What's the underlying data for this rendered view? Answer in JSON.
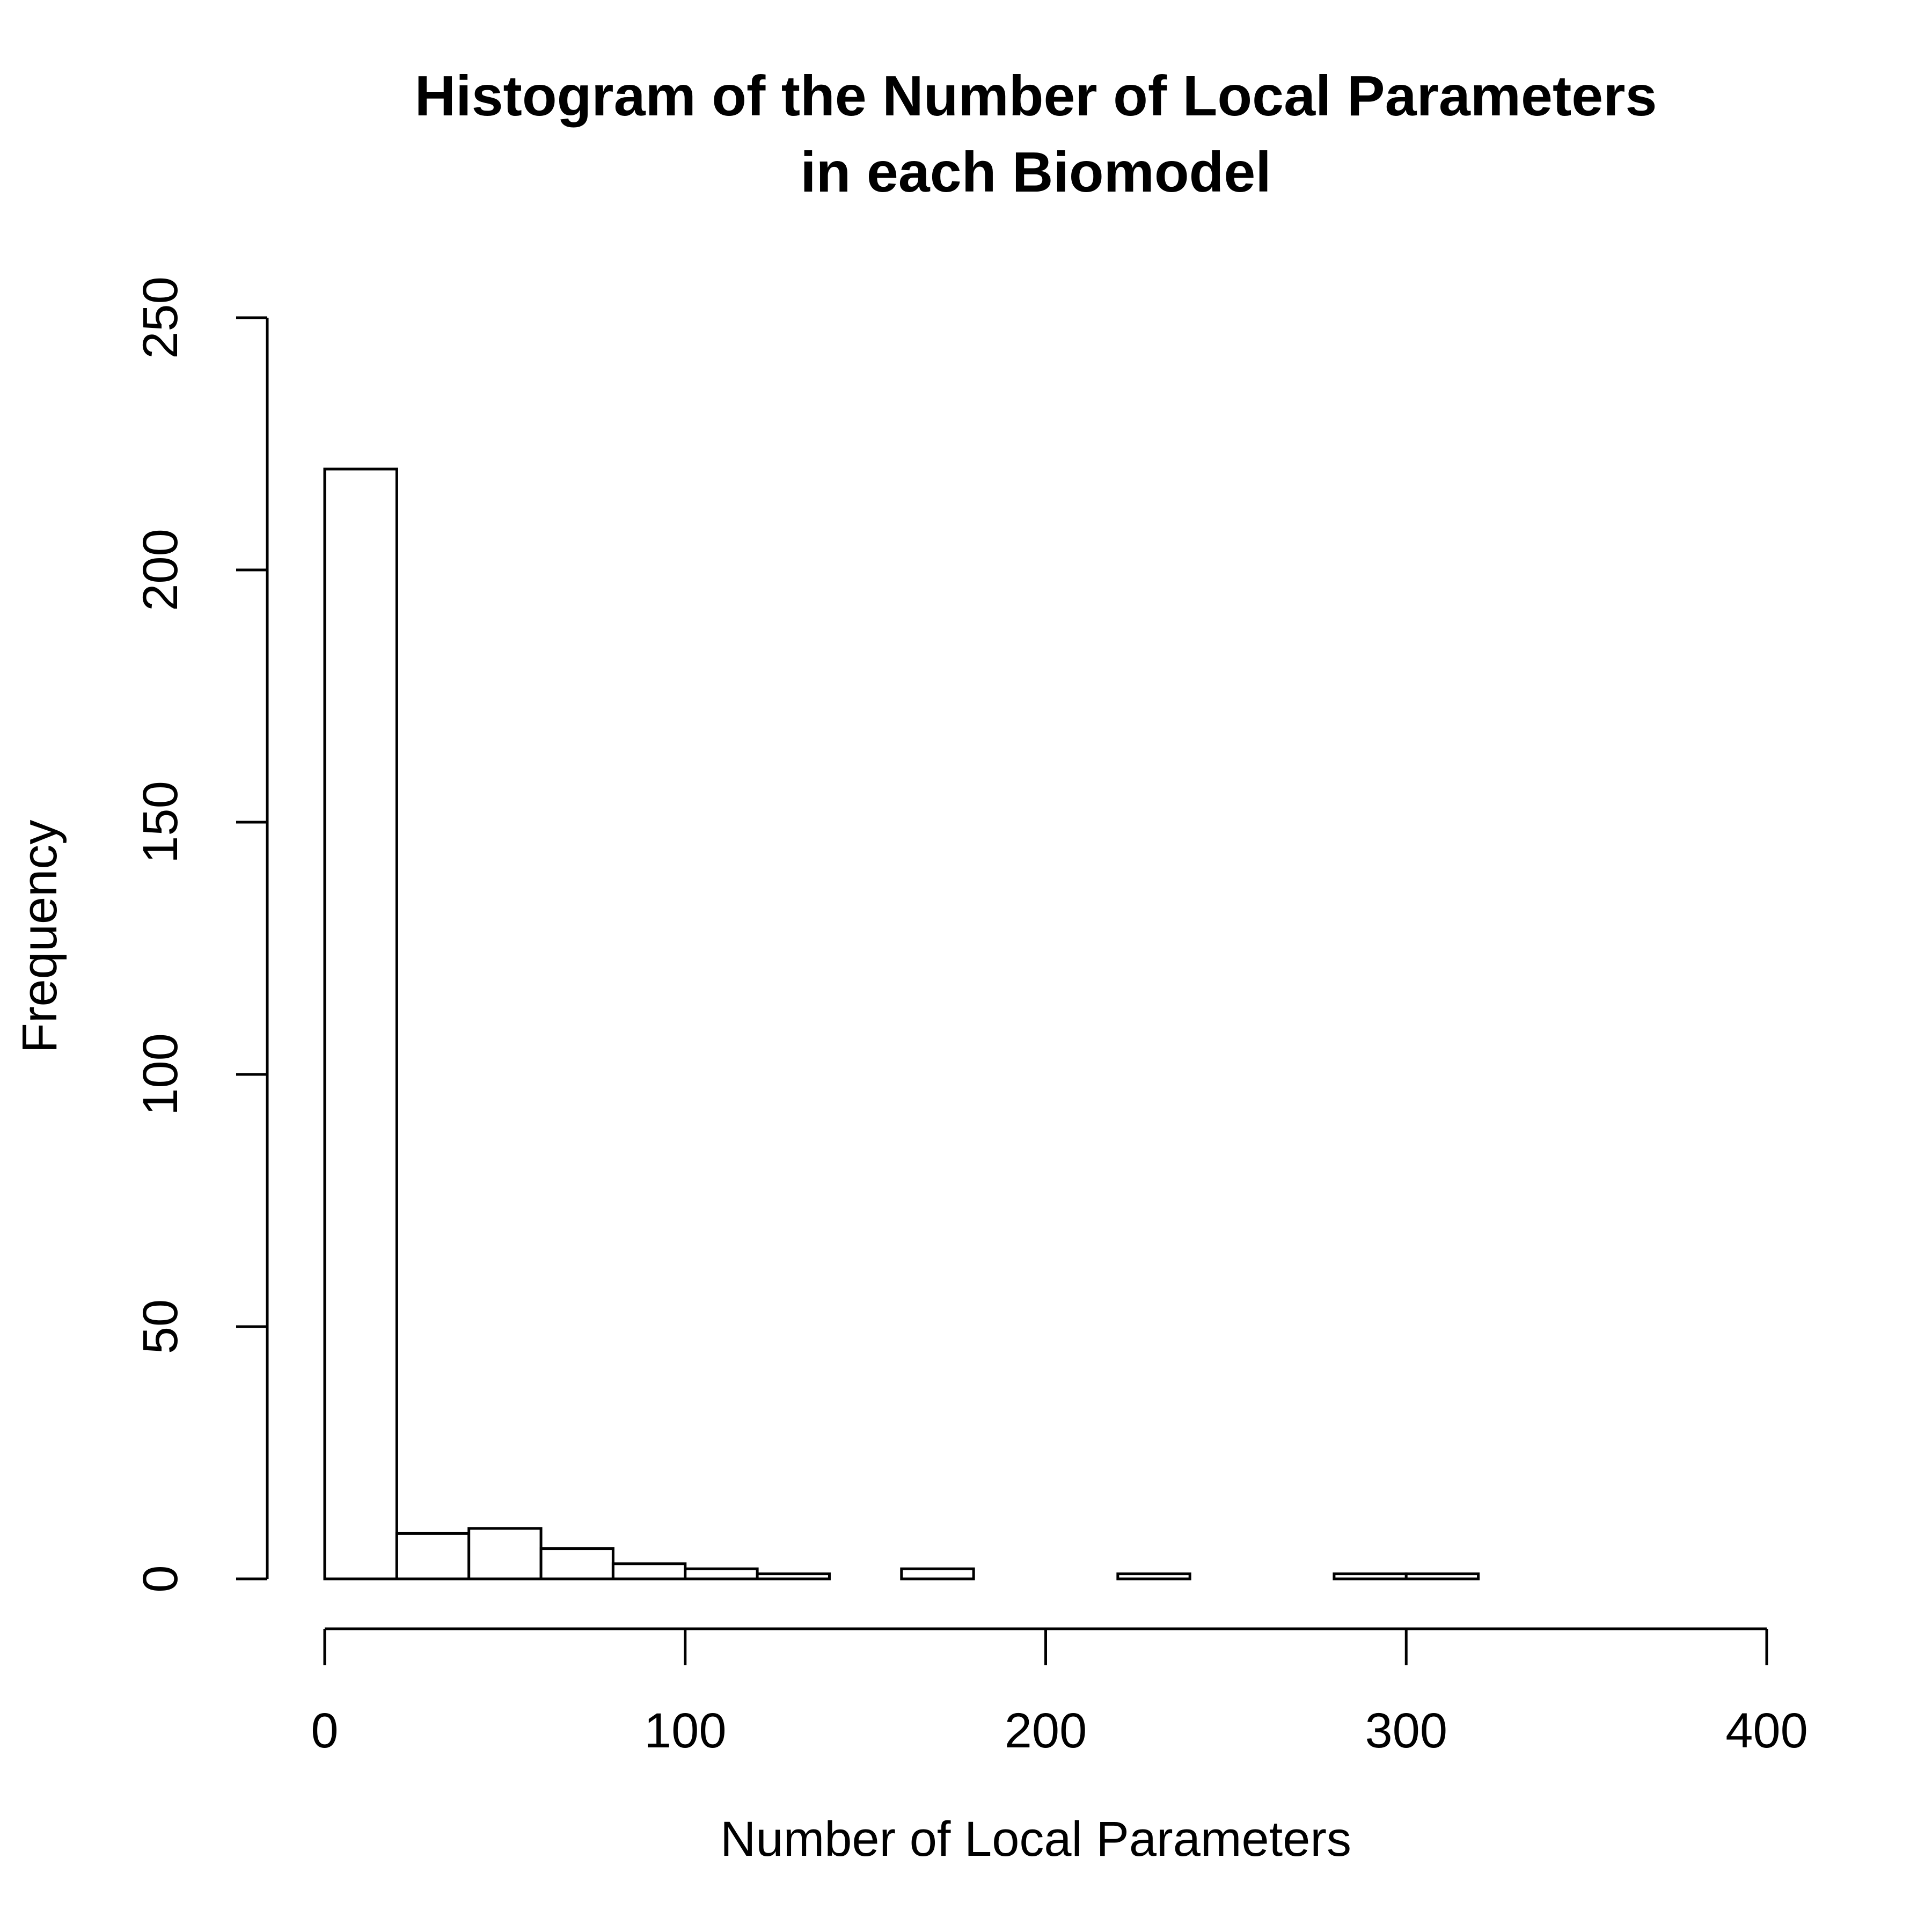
{
  "chart_data": {
    "type": "bar",
    "subtype": "histogram",
    "title_lines": [
      "Histogram of the Number of Local Parameters",
      "in each Biomodel"
    ],
    "xlabel": "Number of Local Parameters",
    "ylabel": "Frequency",
    "xlim": [
      0,
      400
    ],
    "ylim": [
      0,
      250
    ],
    "x_ticks": [
      0,
      100,
      200,
      300,
      400
    ],
    "y_ticks": [
      0,
      50,
      100,
      150,
      200,
      250
    ],
    "bins": [
      {
        "start": 0,
        "end": 20,
        "count": 220
      },
      {
        "start": 20,
        "end": 40,
        "count": 9
      },
      {
        "start": 40,
        "end": 60,
        "count": 10
      },
      {
        "start": 60,
        "end": 80,
        "count": 6
      },
      {
        "start": 80,
        "end": 100,
        "count": 3
      },
      {
        "start": 100,
        "end": 120,
        "count": 2
      },
      {
        "start": 120,
        "end": 140,
        "count": 1
      },
      {
        "start": 140,
        "end": 160,
        "count": 0
      },
      {
        "start": 160,
        "end": 180,
        "count": 2
      },
      {
        "start": 180,
        "end": 200,
        "count": 0
      },
      {
        "start": 200,
        "end": 220,
        "count": 0
      },
      {
        "start": 220,
        "end": 240,
        "count": 1
      },
      {
        "start": 240,
        "end": 260,
        "count": 0
      },
      {
        "start": 260,
        "end": 280,
        "count": 0
      },
      {
        "start": 280,
        "end": 300,
        "count": 1
      },
      {
        "start": 300,
        "end": 320,
        "count": 1
      }
    ],
    "bar_fill": "#ffffff",
    "bar_stroke": "#000000",
    "grid": false,
    "legend": "none"
  }
}
